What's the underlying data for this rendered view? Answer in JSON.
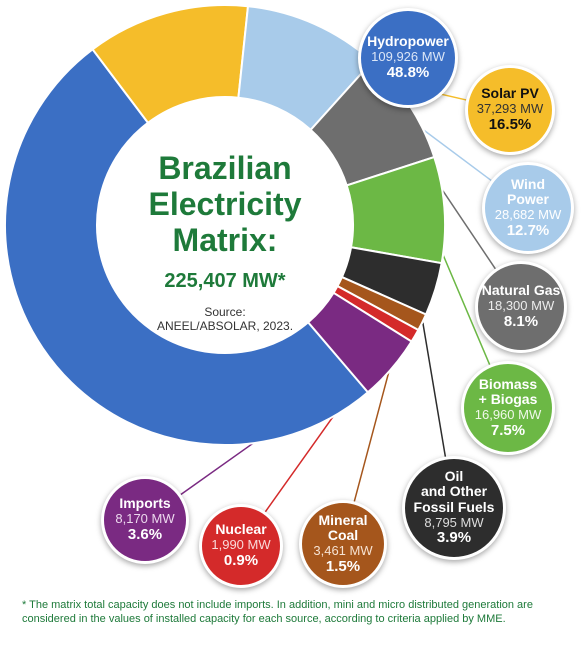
{
  "title_lines": [
    "Brazilian",
    "Electricity",
    "Matrix:"
  ],
  "total": "225,407 MW*",
  "source_label": "Source:",
  "source": "ANEEL/ABSOLAR, 2023.",
  "footnote": "* The matrix total capacity does not include imports. In addition, mini and micro distributed generation are considered in the values of installed capacity for each source, according to criteria applied by MME.",
  "chart_data": {
    "type": "pie",
    "title": "Brazilian Electricity Matrix: 225,407 MW*",
    "series": [
      {
        "name": "Hydropower",
        "mw": 109926,
        "mw_label": "109,926 MW",
        "percent": 48.8,
        "percent_label": "48.8%",
        "color": "#3b6fc4"
      },
      {
        "name": "Solar PV",
        "mw": 37293,
        "mw_label": "37,293 MW",
        "percent": 16.5,
        "percent_label": "16.5%",
        "color": "#f5bd2a"
      },
      {
        "name": "Wind Power",
        "mw": 28682,
        "mw_label": "28,682 MW",
        "percent": 12.7,
        "percent_label": "12.7%",
        "color": "#a8cbea"
      },
      {
        "name": "Natural Gas",
        "mw": 18300,
        "mw_label": "18,300 MW",
        "percent": 8.1,
        "percent_label": "8.1%",
        "color": "#6e6e6e"
      },
      {
        "name": "Biomass + Biogas",
        "mw": 16960,
        "mw_label": "16,960 MW",
        "percent": 7.5,
        "percent_label": "7.5%",
        "color": "#6cb845"
      },
      {
        "name": "Oil and Other Fossil Fuels",
        "mw": 8795,
        "mw_label": "8,795 MW",
        "percent": 3.9,
        "percent_label": "3.9%",
        "color": "#2d2d2d"
      },
      {
        "name": "Mineral Coal",
        "mw": 3461,
        "mw_label": "3,461 MW",
        "percent": 1.5,
        "percent_label": "1.5%",
        "color": "#a5561c"
      },
      {
        "name": "Nuclear",
        "mw": 1990,
        "mw_label": "1,990 MW",
        "percent": 0.9,
        "percent_label": "0.9%",
        "color": "#d42a2a"
      },
      {
        "name": "Imports",
        "mw": 8170,
        "mw_label": "8,170 MW",
        "percent": 3.6,
        "percent_label": "3.6%",
        "color": "#7a2a82"
      }
    ]
  },
  "labels": [
    {
      "name_lines": [
        "Hydropower"
      ]
    },
    {
      "name_lines": [
        "Solar PV"
      ]
    },
    {
      "name_lines": [
        "Wind",
        "Power"
      ]
    },
    {
      "name_lines": [
        "Natural Gas"
      ]
    },
    {
      "name_lines": [
        "Biomass",
        "+ Biogas"
      ]
    },
    {
      "name_lines": [
        "Oil",
        "and Other",
        "Fossil Fuels"
      ]
    },
    {
      "name_lines": [
        "Mineral",
        "Coal"
      ]
    },
    {
      "name_lines": [
        "Nuclear"
      ]
    },
    {
      "name_lines": [
        "Imports"
      ]
    }
  ]
}
